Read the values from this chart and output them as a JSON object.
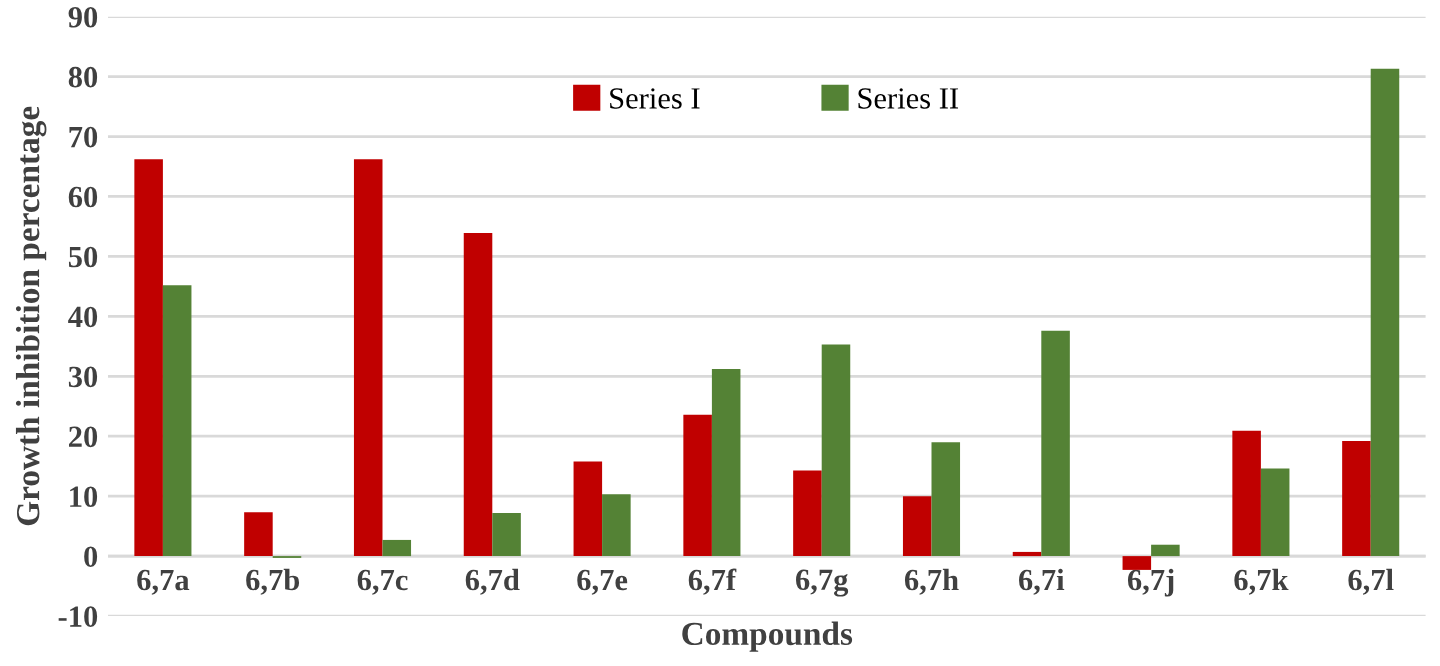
{
  "chart_data": {
    "type": "bar",
    "xlabel": "Compounds",
    "ylabel": "Growth inhibition percentage",
    "categories": [
      "6,7a",
      "6,7b",
      "6,7c",
      "6,7d",
      "6,7e",
      "6,7f",
      "6,7g",
      "6,7h",
      "6,7i",
      "6,7j",
      "6,7k",
      "6,7l"
    ],
    "series": [
      {
        "name": "Series I",
        "color": "#c00000",
        "values": [
          66.2,
          7.3,
          66.2,
          53.9,
          15.8,
          23.6,
          14.3,
          10.0,
          0.7,
          -2.3,
          20.9,
          19.2
        ]
      },
      {
        "name": "Series II",
        "color": "#548235",
        "values": [
          45.2,
          -0.3,
          2.7,
          7.2,
          10.3,
          31.2,
          35.3,
          19.0,
          37.6,
          1.9,
          14.6,
          81.3
        ]
      }
    ],
    "ylim": [
      -10,
      90
    ],
    "yticks": [
      -10,
      0,
      10,
      20,
      30,
      40,
      50,
      60,
      70,
      80,
      90
    ],
    "grid": "y",
    "legend": "top"
  }
}
